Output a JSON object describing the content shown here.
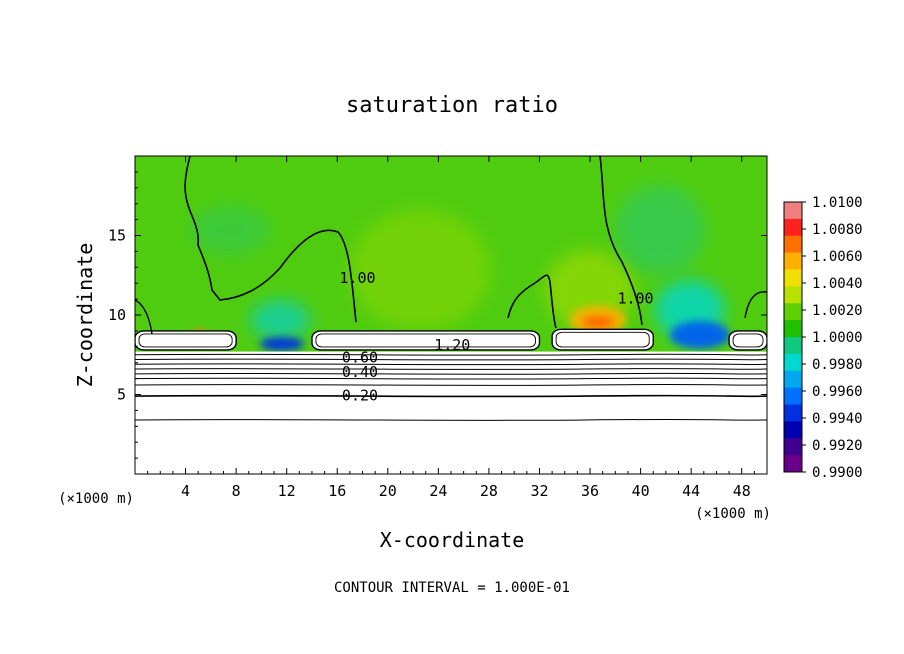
{
  "chart_data": {
    "type": "heatmap",
    "title": "saturation ratio",
    "xlabel": "X-coordinate",
    "ylabel": "Z-coordinate",
    "x_unit": "(×1000 m)",
    "y_unit": "(×1000 m)",
    "footer": "CONTOUR INTERVAL = 1.000E-01",
    "xlim": [
      0,
      50
    ],
    "ylim": [
      0,
      20
    ],
    "x_ticks": [
      4,
      8,
      12,
      16,
      20,
      24,
      28,
      32,
      36,
      40,
      44,
      48
    ],
    "y_ticks": [
      5,
      10,
      15
    ],
    "colorbar": {
      "min": 0.99,
      "max": 1.01,
      "labels": [
        "1.0100",
        "1.0080",
        "1.0060",
        "1.0040",
        "1.0020",
        "1.0000",
        "0.9980",
        "0.9960",
        "0.9940",
        "0.9920",
        "0.9900"
      ],
      "colors": [
        "#f08080",
        "#ff2020",
        "#ff7000",
        "#ffb000",
        "#f0e000",
        "#b8e000",
        "#60d000",
        "#20c000",
        "#10c880",
        "#00d8d0",
        "#00a8f0",
        "#0070ff",
        "#0030e0",
        "#0000b0",
        "#400090",
        "#6a008a"
      ]
    },
    "contour_labels": [
      {
        "text": "1.00",
        "x": 17.6,
        "y": 12.2
      },
      {
        "text": "1.00",
        "x": 39.6,
        "y": 10.9
      },
      {
        "text": "1.20",
        "x": 25.1,
        "y": 8.0
      },
      {
        "text": "0.60",
        "x": 17.8,
        "y": 7.2
      },
      {
        "text": "0.40",
        "x": 17.8,
        "y": 6.3
      },
      {
        "text": "0.20",
        "x": 17.8,
        "y": 4.8
      }
    ],
    "cloud_regions": [
      {
        "name": "cloud-left",
        "x0": 0,
        "x1": 8,
        "z0": 7.8,
        "z1": 9.0
      },
      {
        "name": "cloud-center",
        "x0": 14,
        "x1": 32,
        "z0": 7.8,
        "z1": 9.0
      },
      {
        "name": "cloud-right",
        "x0": 33,
        "x1": 41,
        "z0": 7.8,
        "z1": 9.1
      },
      {
        "name": "cloud-edge",
        "x0": 47,
        "x1": 50,
        "z0": 7.8,
        "z1": 9.0
      }
    ],
    "stable_layer_top": 7.7,
    "horizontal_contours_z": [
      7.5,
      7.2,
      6.9,
      6.6,
      6.3,
      6.0,
      5.6,
      4.9,
      3.4
    ]
  }
}
